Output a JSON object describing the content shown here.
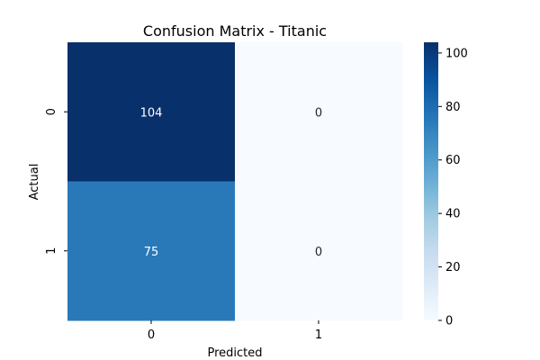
{
  "chart_data": {
    "type": "heatmap",
    "title": "Confusion Matrix - Titanic",
    "xlabel": "Predicted",
    "ylabel": "Actual",
    "x_categories": [
      "0",
      "1"
    ],
    "y_categories": [
      "0",
      "1"
    ],
    "matrix": [
      [
        104,
        0
      ],
      [
        75,
        0
      ]
    ],
    "colormap": "Blues",
    "colorbar": {
      "range": [
        0,
        104
      ],
      "ticks": [
        "0",
        "20",
        "40",
        "60",
        "80",
        "100"
      ]
    },
    "grid": false,
    "colors": {
      "low": "#f7fbff",
      "high": "#08306b"
    }
  }
}
